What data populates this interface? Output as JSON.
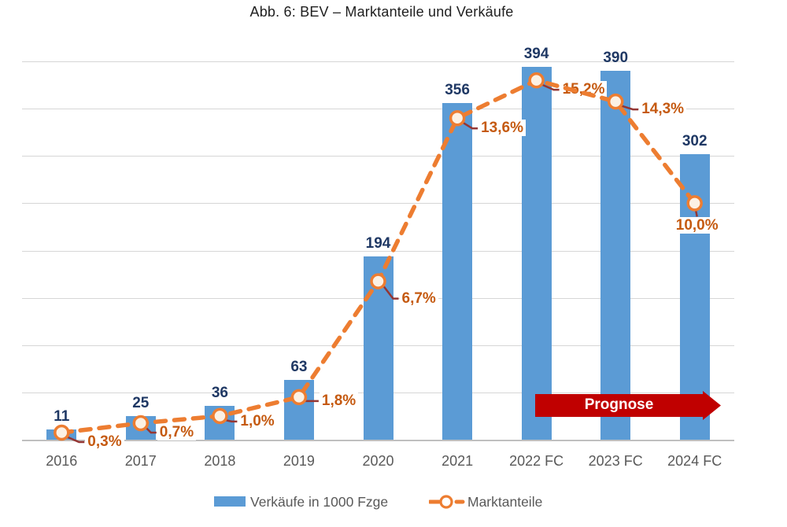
{
  "title": "Abb. 6: BEV – Marktanteile und Verkäufe",
  "annotation": {
    "prognose_label": "Prognose"
  },
  "legend": {
    "bars_label": "Verkäufe in 1000 Fzge",
    "line_label": "Marktanteile",
    "position": "bottom-center"
  },
  "colors": {
    "bar_blue": "#5b9bd5",
    "line_orange": "#ed7d31",
    "marker_fill": "#fcf1e4",
    "leader_dark_red": "#943634",
    "value_label_navy": "#1f3864",
    "percent_label_orange": "#c55a11",
    "prognose_red": "#c00000",
    "gridline_gray": "#d6d6d6",
    "axis_text_gray": "#595959"
  },
  "chart_data": {
    "type": "bar",
    "subtype": "combo bar + dashed line with circle markers (secondary % axis)",
    "title": "Abb. 6: BEV – Marktanteile und Verkäufe",
    "categories": [
      "2016",
      "2017",
      "2018",
      "2019",
      "2020",
      "2021",
      "2022 FC",
      "2023 FC",
      "2024 FC"
    ],
    "series": [
      {
        "name": "Verkäufe in 1000 Fzge",
        "type": "bar",
        "values": [
          11,
          25,
          36,
          63,
          194,
          356,
          394,
          390,
          302
        ],
        "data_labels": [
          "11",
          "25",
          "36",
          "63",
          "194",
          "356",
          "394",
          "390",
          "302"
        ]
      },
      {
        "name": "Marktanteile",
        "type": "line",
        "values_percent": [
          0.3,
          0.7,
          1.0,
          1.8,
          6.7,
          13.6,
          15.2,
          14.3,
          10.0
        ],
        "data_labels": [
          "0,3%",
          "0,7%",
          "1,0%",
          "1,8%",
          "6,7%",
          "13,6%",
          "15,2%",
          "14,3%",
          "10,0%"
        ]
      }
    ],
    "xlabel": "",
    "ylabel": "",
    "ylim_primary": [
      0,
      400
    ],
    "ylim_secondary_percent": [
      0,
      16
    ],
    "grid": "horizontal gridlines every 50 units (primary) / 2% (secondary), no visible y-axis tick labels",
    "annotations": [
      "Prognose arrow banner spanning the forecast years 2022 FC – 2024 FC"
    ]
  }
}
